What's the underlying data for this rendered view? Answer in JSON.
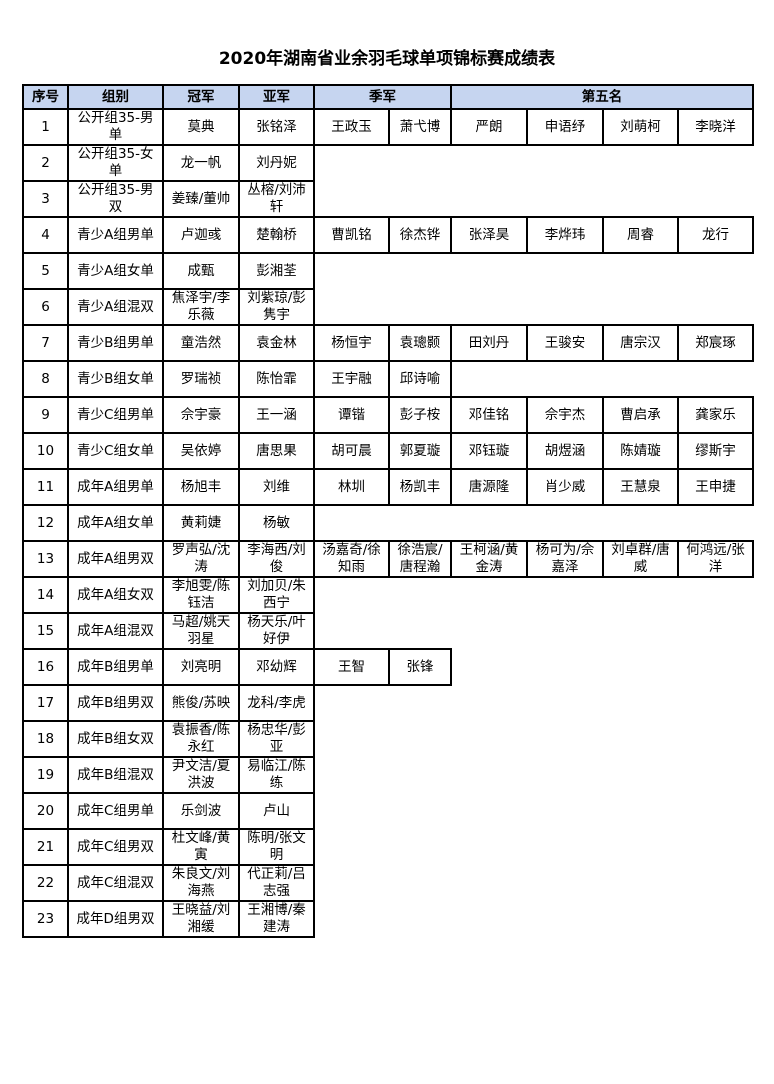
{
  "title": "2020年湖南省业余羽毛球单项锦标赛成绩表",
  "header": {
    "no": "序号",
    "group": "组别",
    "champion": "冠军",
    "runner_up": "亚军",
    "third": "季军",
    "fifth": "第五名"
  },
  "header_color": "#c6d5f0",
  "rows": [
    {
      "no": "1",
      "group": "公开组35-男单",
      "champion": "莫典",
      "runner_up": "张铭泽",
      "third": [
        "王政玉",
        "萧弋博"
      ],
      "fifth": [
        "严朗",
        "申语纾",
        "刘萌柯",
        "李晓洋"
      ]
    },
    {
      "no": "2",
      "group": "公开组35-女单",
      "champion": "龙一帆",
      "runner_up": "刘丹妮",
      "third": [],
      "fifth": []
    },
    {
      "no": "3",
      "group": "公开组35-男双",
      "champion": "姜臻/董帅",
      "runner_up": "丛榕/刘沛轩",
      "third": [],
      "fifth": []
    },
    {
      "no": "4",
      "group": "青少A组男单",
      "champion": "卢迦彧",
      "runner_up": "楚翰桥",
      "third": [
        "曹凯铭",
        "徐杰铧"
      ],
      "fifth": [
        "张泽昊",
        "李烨玮",
        "周睿",
        "龙行"
      ]
    },
    {
      "no": "5",
      "group": "青少A组女单",
      "champion": "成甄",
      "runner_up": "彭湘荃",
      "third": [],
      "fifth": []
    },
    {
      "no": "6",
      "group": "青少A组混双",
      "champion": "焦泽宇/李乐薇",
      "runner_up": "刘紫琼/彭隽宇",
      "third": [],
      "fifth": []
    },
    {
      "no": "7",
      "group": "青少B组男单",
      "champion": "童浩然",
      "runner_up": "袁金林",
      "third": [
        "杨恒宇",
        "袁璁颢"
      ],
      "fifth": [
        "田刘丹",
        "王骏安",
        "唐宗汉",
        "郑宸琢"
      ]
    },
    {
      "no": "8",
      "group": "青少B组女单",
      "champion": "罗瑞祯",
      "runner_up": "陈怡霏",
      "third": [
        "王宇融",
        "邱诗喻"
      ],
      "fifth": []
    },
    {
      "no": "9",
      "group": "青少C组男单",
      "champion": "佘宇豪",
      "runner_up": "王一涵",
      "third": [
        "谭锴",
        "彭子桉"
      ],
      "fifth": [
        "邓佳铭",
        "佘宇杰",
        "曹启承",
        "龚家乐"
      ]
    },
    {
      "no": "10",
      "group": "青少C组女单",
      "champion": "吴依婷",
      "runner_up": "唐思果",
      "third": [
        "胡可晨",
        "郭夏璇"
      ],
      "fifth": [
        "邓钰璇",
        "胡煜涵",
        "陈婧璇",
        "缪斯宇"
      ]
    },
    {
      "no": "11",
      "group": "成年A组男单",
      "champion": "杨旭丰",
      "runner_up": "刘维",
      "third": [
        "林圳",
        "杨凯丰"
      ],
      "fifth": [
        "唐源隆",
        "肖少威",
        "王慧泉",
        "王申捷"
      ]
    },
    {
      "no": "12",
      "group": "成年A组女单",
      "champion": "黄莉婕",
      "runner_up": "杨敏",
      "third": [],
      "fifth": []
    },
    {
      "no": "13",
      "group": "成年A组男双",
      "champion": "罗声弘/沈涛",
      "runner_up": "李海西/刘俊",
      "third": [
        "汤嘉奇/徐知雨",
        "徐浩宸/唐程瀚"
      ],
      "fifth": [
        "王柯涵/黄金涛",
        "杨可为/佘嘉泽",
        "刘卓群/唐威",
        "何鸿远/张洋"
      ]
    },
    {
      "no": "14",
      "group": "成年A组女双",
      "champion": "李旭雯/陈钰洁",
      "runner_up": "刘加贝/朱西宁",
      "third": [],
      "fifth": []
    },
    {
      "no": "15",
      "group": "成年A组混双",
      "champion": "马超/姚天羽星",
      "runner_up": "杨天乐/叶好伊",
      "third": [],
      "fifth": []
    },
    {
      "no": "16",
      "group": "成年B组男单",
      "champion": "刘亮明",
      "runner_up": "邓幼辉",
      "third": [
        "王智",
        "张锋"
      ],
      "fifth": []
    },
    {
      "no": "17",
      "group": "成年B组男双",
      "champion": "熊俊/苏映",
      "runner_up": "龙科/李虎",
      "third": [],
      "fifth": []
    },
    {
      "no": "18",
      "group": "成年B组女双",
      "champion": "袁振香/陈永红",
      "runner_up": "杨忠华/彭亚",
      "third": [],
      "fifth": []
    },
    {
      "no": "19",
      "group": "成年B组混双",
      "champion": "尹文洁/夏洪波",
      "runner_up": "易临江/陈练",
      "third": [],
      "fifth": []
    },
    {
      "no": "20",
      "group": "成年C组男单",
      "champion": "乐剑波",
      "runner_up": "卢山",
      "third": [],
      "fifth": []
    },
    {
      "no": "21",
      "group": "成年C组男双",
      "champion": "杜文峰/黄寅",
      "runner_up": "陈明/张文明",
      "third": [],
      "fifth": []
    },
    {
      "no": "22",
      "group": "成年C组混双",
      "champion": "朱良文/刘海燕",
      "runner_up": "代正莉/吕志强",
      "third": [],
      "fifth": []
    },
    {
      "no": "23",
      "group": "成年D组男双",
      "champion": "王晓益/刘湘缓",
      "runner_up": "王湘博/秦建涛",
      "third": [],
      "fifth": []
    }
  ]
}
